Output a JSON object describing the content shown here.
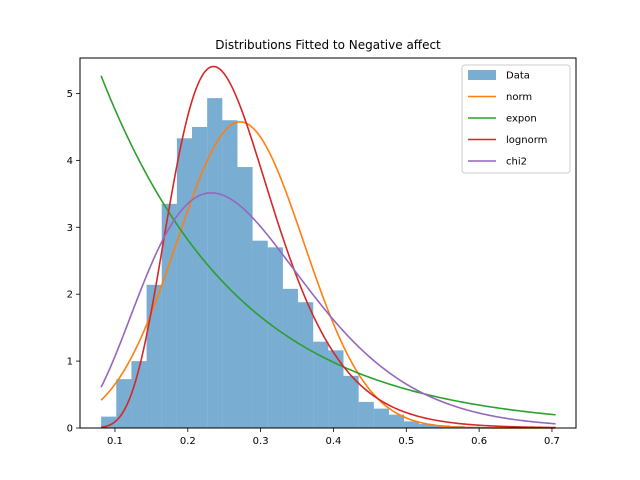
{
  "chart_data": {
    "type": "bar",
    "title": "Distributions Fitted to Negative affect",
    "xlabel": "",
    "ylabel": "",
    "xlim": [
      0.052,
      0.733
    ],
    "ylim": [
      0,
      5.53
    ],
    "xticks": [
      0.1,
      0.2,
      0.3,
      0.4,
      0.5,
      0.6,
      0.7
    ],
    "xtick_labels": [
      "0.1",
      "0.2",
      "0.3",
      "0.4",
      "0.5",
      "0.6",
      "0.7"
    ],
    "yticks": [
      0,
      1,
      2,
      3,
      4,
      5
    ],
    "ytick_labels": [
      "0",
      "1",
      "2",
      "3",
      "4",
      "5"
    ],
    "grid": false,
    "legend_position": "top-right",
    "histogram": {
      "name": "Data",
      "color": "#1f77b4",
      "alpha": 0.6,
      "bin_edges": [
        0.081,
        0.1018,
        0.1226,
        0.1434,
        0.1642,
        0.185,
        0.2058,
        0.2266,
        0.2474,
        0.2682,
        0.289,
        0.3098,
        0.3306,
        0.3514,
        0.3722,
        0.393,
        0.4138,
        0.4346,
        0.4554,
        0.4762,
        0.497,
        0.5178,
        0.5386,
        0.5594,
        0.5802,
        0.601,
        0.6218,
        0.6426,
        0.6634,
        0.6842,
        0.705
      ],
      "heights": [
        0.17,
        0.73,
        1.0,
        2.14,
        3.35,
        4.33,
        4.5,
        4.93,
        4.6,
        3.9,
        2.8,
        2.7,
        2.08,
        1.88,
        1.29,
        1.16,
        0.78,
        0.39,
        0.29,
        0.2,
        0.1,
        0.06,
        0.04,
        0.03,
        0.02,
        0.01,
        0.01,
        0.0,
        0.0,
        0.01
      ]
    },
    "series": [
      {
        "name": "norm",
        "color": "#ff7f0e",
        "dist": "norm",
        "params": {
          "mu": 0.272,
          "sigma": 0.0872
        }
      },
      {
        "name": "expon",
        "color": "#2ca02c",
        "dist": "expon",
        "params": {
          "loc": 0.081,
          "scale": 0.19
        }
      },
      {
        "name": "lognorm",
        "color": "#d62728",
        "dist": "lognorm",
        "params": {
          "mu": -1.357,
          "sigma": 0.3
        }
      },
      {
        "name": "chi2",
        "color": "#9467bd",
        "dist": "chi2",
        "params": {
          "k": 10.7,
          "loc": 0.0,
          "scale": 0.0267
        }
      }
    ],
    "curve_x_range": [
      0.081,
      0.705
    ]
  }
}
